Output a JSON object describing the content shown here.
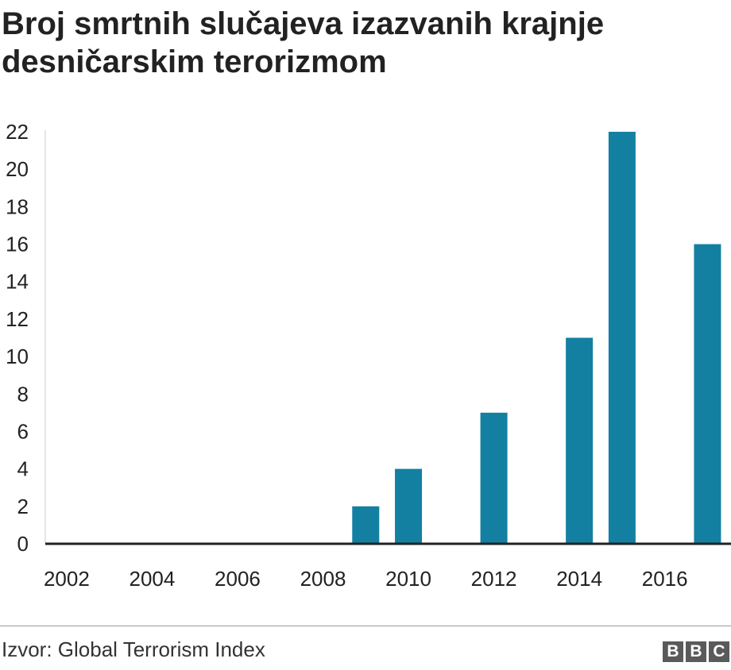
{
  "title": "Broj smrtnih slučajeva izazvanih krajnje desničarskim terorizmom",
  "source": "Izvor: Global Terrorism Index",
  "logo": {
    "letters": [
      "B",
      "B",
      "C"
    ]
  },
  "colors": {
    "bar": "#1380a1",
    "axis": "#222222",
    "grid": "#cccccc",
    "text": "#222222"
  },
  "chart_data": {
    "type": "bar",
    "title": "Broj smrtnih slučajeva izazvanih krajnje desničarskim terorizmom",
    "xlabel": "",
    "ylabel": "",
    "categories": [
      2002,
      2003,
      2004,
      2005,
      2006,
      2007,
      2008,
      2009,
      2010,
      2011,
      2012,
      2013,
      2014,
      2015,
      2016,
      2017
    ],
    "values": [
      0,
      0,
      0,
      0,
      0,
      0,
      0,
      2,
      4,
      0,
      7,
      0,
      11,
      22,
      0,
      16
    ],
    "ylim": [
      0,
      22
    ],
    "yticks": [
      0,
      2,
      4,
      6,
      8,
      10,
      12,
      14,
      16,
      18,
      20,
      22
    ],
    "xticks": [
      2002,
      2004,
      2006,
      2008,
      2010,
      2012,
      2014,
      2016
    ],
    "grid": false,
    "legend": "none"
  }
}
